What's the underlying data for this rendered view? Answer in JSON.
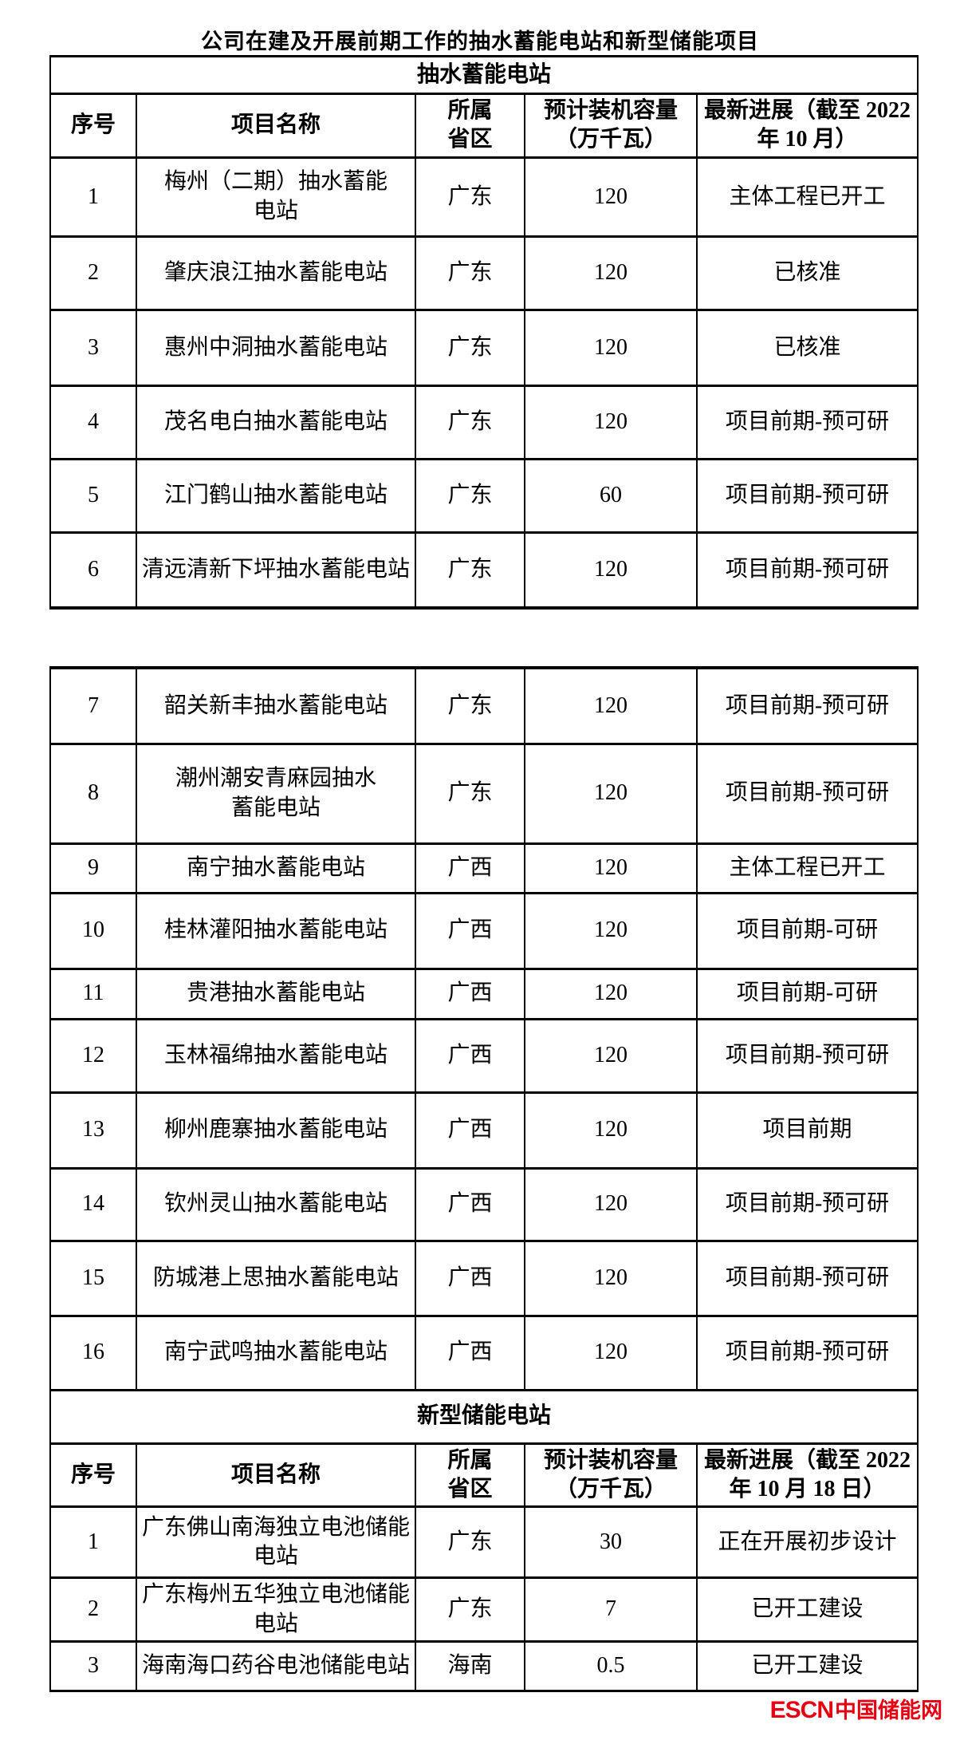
{
  "title": "公司在建及开展前期工作的抽水蓄能电站和新型储能项目",
  "colors": {
    "text": "#000000",
    "border": "#000000",
    "background": "#ffffff",
    "logo_red": "#e60012"
  },
  "pumped": {
    "section_title": "抽水蓄能电站",
    "headers": {
      "no": "序号",
      "name": "项目名称",
      "province": "所属\n省区",
      "capacity": "预计装机容量\n（万千瓦）",
      "progress": "最新进展（截至 2022\n年 10 月）"
    },
    "rows": [
      {
        "no": "1",
        "name": "梅州（二期）抽水蓄能\n电站",
        "province": "广东",
        "capacity": "120",
        "progress": "主体工程已开工"
      },
      {
        "no": "2",
        "name": "肇庆浪江抽水蓄能电站",
        "province": "广东",
        "capacity": "120",
        "progress": "已核准"
      },
      {
        "no": "3",
        "name": "惠州中洞抽水蓄能电站",
        "province": "广东",
        "capacity": "120",
        "progress": "已核准"
      },
      {
        "no": "4",
        "name": "茂名电白抽水蓄能电站",
        "province": "广东",
        "capacity": "120",
        "progress": "项目前期-预可研"
      },
      {
        "no": "5",
        "name": "江门鹤山抽水蓄能电站",
        "province": "广东",
        "capacity": "60",
        "progress": "项目前期-预可研"
      },
      {
        "no": "6",
        "name": "清远清新下坪抽水蓄能电站",
        "province": "广东",
        "capacity": "120",
        "progress": "项目前期-预可研"
      },
      {
        "no": "7",
        "name": "韶关新丰抽水蓄能电站",
        "province": "广东",
        "capacity": "120",
        "progress": "项目前期-预可研"
      },
      {
        "no": "8",
        "name": "潮州潮安青麻园抽水\n蓄能电站",
        "province": "广东",
        "capacity": "120",
        "progress": "项目前期-预可研"
      },
      {
        "no": "9",
        "name": "南宁抽水蓄能电站",
        "province": "广西",
        "capacity": "120",
        "progress": "主体工程已开工"
      },
      {
        "no": "10",
        "name": "桂林灌阳抽水蓄能电站",
        "province": "广西",
        "capacity": "120",
        "progress": "项目前期-可研"
      },
      {
        "no": "11",
        "name": "贵港抽水蓄能电站",
        "province": "广西",
        "capacity": "120",
        "progress": "项目前期-可研"
      },
      {
        "no": "12",
        "name": "玉林福绵抽水蓄能电站",
        "province": "广西",
        "capacity": "120",
        "progress": "项目前期-预可研"
      },
      {
        "no": "13",
        "name": "柳州鹿寨抽水蓄能电站",
        "province": "广西",
        "capacity": "120",
        "progress": "项目前期"
      },
      {
        "no": "14",
        "name": "钦州灵山抽水蓄能电站",
        "province": "广西",
        "capacity": "120",
        "progress": "项目前期-预可研"
      },
      {
        "no": "15",
        "name": "防城港上思抽水蓄能电站",
        "province": "广西",
        "capacity": "120",
        "progress": "项目前期-预可研"
      },
      {
        "no": "16",
        "name": "南宁武鸣抽水蓄能电站",
        "province": "广西",
        "capacity": "120",
        "progress": "项目前期-预可研"
      }
    ]
  },
  "storage": {
    "section_title": "新型储能电站",
    "headers": {
      "no": "序号",
      "name": "项目名称",
      "province": "所属\n省区",
      "capacity": "预计装机容量\n（万千瓦）",
      "progress": "最新进展（截至 2022\n年 10 月 18 日）"
    },
    "rows": [
      {
        "no": "1",
        "name": "广东佛山南海独立电池储能\n电站",
        "province": "广东",
        "capacity": "30",
        "progress": "正在开展初步设计"
      },
      {
        "no": "2",
        "name": "广东梅州五华独立电池储能\n电站",
        "province": "广东",
        "capacity": "7",
        "progress": "已开工建设"
      },
      {
        "no": "3",
        "name": "海南海口药谷电池储能电站",
        "province": "海南",
        "capacity": "0.5",
        "progress": "已开工建设"
      }
    ]
  },
  "logo": {
    "latin": "ESCN",
    "chinese": "中国储能网"
  }
}
